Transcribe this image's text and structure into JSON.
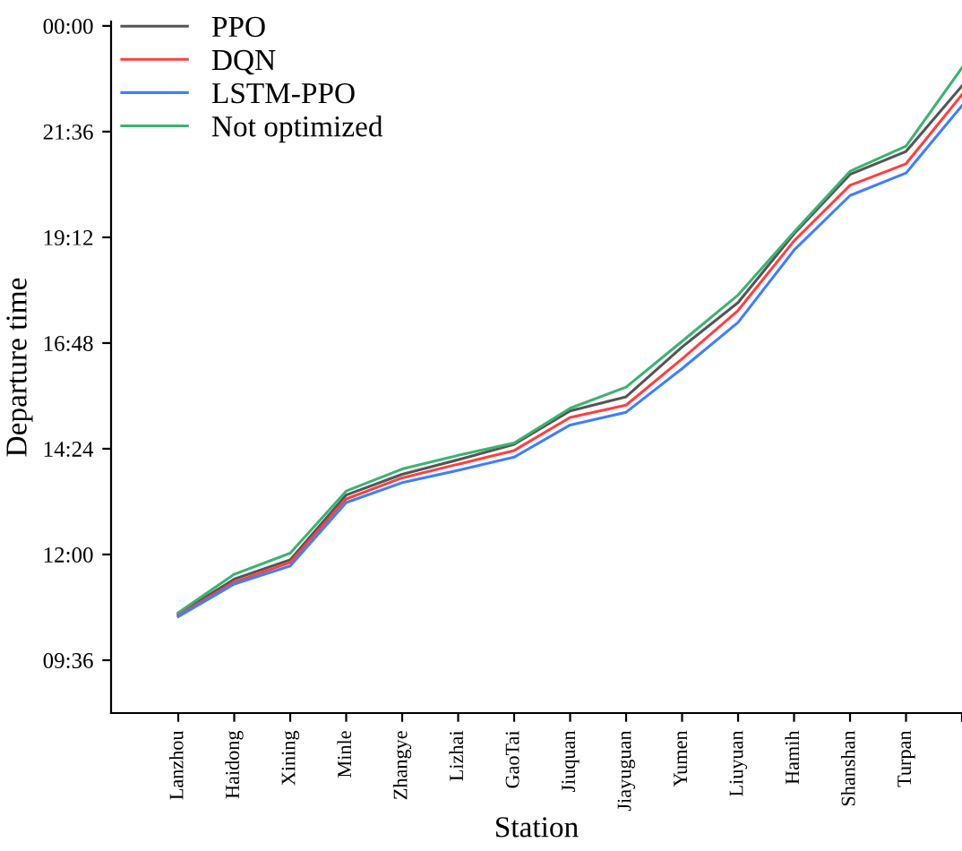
{
  "chart_data": {
    "type": "line",
    "xlabel": "Station",
    "ylabel": "Departure time",
    "categories": [
      "Lanzhou",
      "Haidong",
      "Xining",
      "Minle",
      "Zhangye",
      "Lizhai",
      "GaoTai",
      "Jiuquan",
      "Jiayuguan",
      "Yumen",
      "Liuyuan",
      "Hamih",
      "Shanshan",
      "Turpan",
      null
    ],
    "series": [
      {
        "name": "PPO",
        "color": "#555555",
        "values": [
          10.65,
          11.44,
          11.88,
          13.35,
          13.82,
          14.15,
          14.5,
          15.26,
          15.58,
          16.71,
          17.72,
          19.28,
          20.63,
          21.15,
          22.64
        ]
      },
      {
        "name": "DQN",
        "color": "#ff4040",
        "values": [
          10.62,
          11.37,
          11.82,
          13.26,
          13.74,
          14.05,
          14.36,
          15.11,
          15.39,
          16.44,
          17.54,
          19.12,
          20.38,
          20.87,
          22.44
        ]
      },
      {
        "name": "LSTM-PPO",
        "color": "#3f7fff",
        "values": [
          10.59,
          11.33,
          11.74,
          13.18,
          13.63,
          13.91,
          14.21,
          14.94,
          15.23,
          16.22,
          17.27,
          18.91,
          20.15,
          20.66,
          22.19
        ]
      },
      {
        "name": "Not optimized",
        "color": "#3cb371",
        "values": [
          10.68,
          11.55,
          12.03,
          13.44,
          13.94,
          14.25,
          14.53,
          15.32,
          15.8,
          16.84,
          17.89,
          19.32,
          20.7,
          21.27,
          23.05
        ]
      }
    ],
    "ylim": [
      8.4,
      24.1
    ],
    "yticks": [
      {
        "value": 9.6,
        "label": "09:36"
      },
      {
        "value": 12,
        "label": "12:00"
      },
      {
        "value": 14.4,
        "label": "14:24"
      },
      {
        "value": 16.8,
        "label": "16:48"
      },
      {
        "value": 19.2,
        "label": "19:12"
      },
      {
        "value": 21.6,
        "label": "21:36"
      },
      {
        "value": 24,
        "label": "00:00"
      }
    ],
    "legend": "top left",
    "grid": false,
    "marker": "none",
    "line_style": "solid"
  }
}
